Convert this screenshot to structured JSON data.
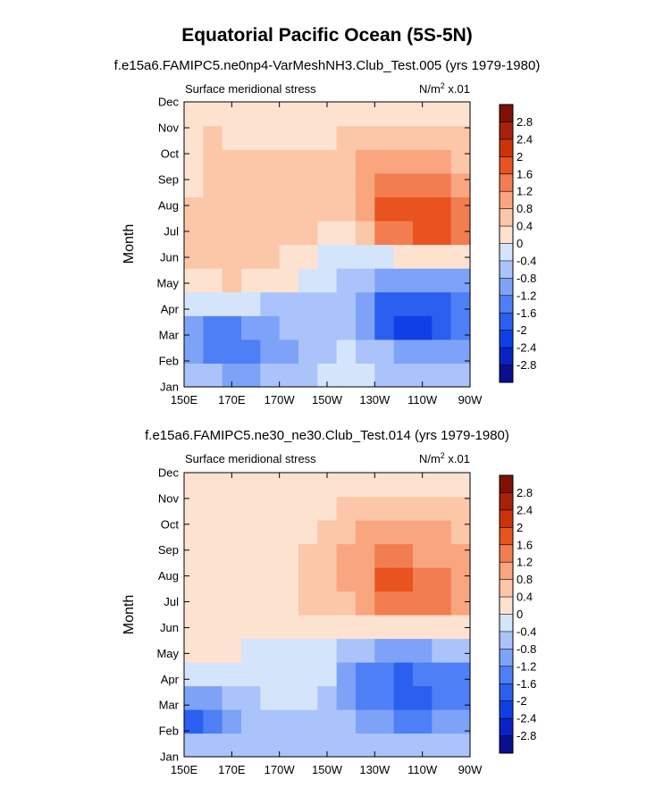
{
  "title": "Equatorial Pacific Ocean (5S-5N)",
  "colorbar": {
    "levels": [
      -2.8,
      -2.4,
      -2,
      -1.6,
      -1.2,
      -0.8,
      -0.4,
      0,
      0.4,
      0.8,
      1.2,
      1.6,
      2,
      2.4,
      2.8
    ],
    "level_labels": [
      "-2.8",
      "-2.4",
      "-2",
      "-1.6",
      "-1.2",
      "-0.8",
      "-0.4",
      "0",
      "0.4",
      "0.8",
      "1.2",
      "1.6",
      "2",
      "2.4",
      "2.8"
    ],
    "colors": [
      "#0a0f8c",
      "#0a22c4",
      "#0f3fe6",
      "#2a5ff0",
      "#4f7ff6",
      "#7da2f8",
      "#aac3fa",
      "#d4e4fb",
      "#fde2d0",
      "#fcc6a8",
      "#f9a57f",
      "#f27d50",
      "#e8531f",
      "#cc3408",
      "#a8210a",
      "#7c1205"
    ]
  },
  "chart_data": [
    {
      "type": "heatmap",
      "subtitle": "f.e15a6.FAMIPC5.ne0np4-VarMeshNH3.Club_Test.005 (yrs 1979-1980)",
      "left_label": "Surface meridional stress",
      "units_main": "N/m",
      "units_sup": "2",
      "units_rest": " x.01",
      "ylabel": "Month",
      "xlabel": "",
      "x_ticks": [
        "150E",
        "170E",
        "170W",
        "150W",
        "130W",
        "110W",
        "90W"
      ],
      "y_ticks": [
        "Jan",
        "Feb",
        "Mar",
        "Apr",
        "May",
        "Jun",
        "Jul",
        "Aug",
        "Sep",
        "Oct",
        "Nov",
        "Dec"
      ],
      "z": [
        [
          -0.6,
          -0.8,
          -0.9,
          -0.9,
          -0.8,
          -0.7,
          -0.5,
          -0.4,
          -0.3,
          -0.4,
          -0.6,
          -0.6,
          -0.6,
          -0.6,
          -0.7
        ],
        [
          -1.0,
          -1.4,
          -1.4,
          -1.3,
          -1.1,
          -0.9,
          -0.7,
          -0.5,
          -0.4,
          -0.5,
          -0.8,
          -0.9,
          -0.9,
          -0.9,
          -1.0
        ],
        [
          -0.9,
          -1.3,
          -1.4,
          -1.2,
          -1.0,
          -0.8,
          -0.8,
          -0.7,
          -0.8,
          -1.2,
          -1.7,
          -2.2,
          -2.4,
          -2.0,
          -1.6
        ],
        [
          -0.3,
          -0.4,
          -0.4,
          -0.4,
          -0.5,
          -0.6,
          -0.6,
          -0.5,
          -0.6,
          -1.1,
          -1.7,
          -2.0,
          -2.0,
          -1.7,
          -1.4
        ],
        [
          0.2,
          0.3,
          0.4,
          0.3,
          0.2,
          0.0,
          -0.2,
          -0.3,
          -0.5,
          -0.8,
          -1.0,
          -1.1,
          -1.1,
          -1.0,
          -0.9
        ],
        [
          0.4,
          0.6,
          0.5,
          0.5,
          0.4,
          0.3,
          0.2,
          -0.1,
          -0.2,
          -0.2,
          -0.1,
          0.1,
          0.2,
          0.3,
          0.3
        ],
        [
          0.4,
          0.5,
          0.4,
          0.4,
          0.4,
          0.5,
          0.4,
          0.3,
          0.2,
          0.6,
          1.2,
          1.5,
          1.7,
          1.6,
          1.4
        ],
        [
          0.4,
          0.5,
          0.4,
          0.4,
          0.4,
          0.5,
          0.4,
          0.4,
          0.5,
          1.0,
          1.6,
          1.8,
          1.8,
          1.7,
          1.5
        ],
        [
          0.3,
          0.5,
          0.4,
          0.4,
          0.4,
          0.4,
          0.4,
          0.5,
          0.6,
          1.0,
          1.3,
          1.4,
          1.4,
          1.3,
          1.1
        ],
        [
          0.3,
          0.5,
          0.4,
          0.4,
          0.4,
          0.4,
          0.4,
          0.5,
          0.6,
          0.8,
          0.9,
          0.9,
          0.9,
          0.8,
          0.7
        ],
        [
          0.3,
          0.4,
          0.3,
          0.3,
          0.3,
          0.3,
          0.3,
          0.3,
          0.4,
          0.5,
          0.5,
          0.5,
          0.5,
          0.5,
          0.4
        ],
        [
          0.1,
          0.2,
          0.2,
          0.2,
          0.2,
          0.2,
          0.2,
          0.2,
          0.2,
          0.1,
          0.1,
          0.0,
          0.0,
          0.0,
          0.0
        ]
      ]
    },
    {
      "type": "heatmap",
      "subtitle": "f.e15a6.FAMIPC5.ne30_ne30.Club_Test.014 (yrs 1979-1980)",
      "left_label": "Surface meridional stress",
      "units_main": "N/m",
      "units_sup": "2",
      "units_rest": " x.01",
      "ylabel": "Month",
      "xlabel": "",
      "x_ticks": [
        "150E",
        "170E",
        "170W",
        "150W",
        "130W",
        "110W",
        "90W"
      ],
      "y_ticks": [
        "Jan",
        "Feb",
        "Mar",
        "Apr",
        "May",
        "Jun",
        "Jul",
        "Aug",
        "Sep",
        "Oct",
        "Nov",
        "Dec"
      ],
      "z": [
        [
          -0.7,
          -0.7,
          -0.7,
          -0.7,
          -0.6,
          -0.6,
          -0.5,
          -0.5,
          -0.5,
          -0.6,
          -0.7,
          -0.8,
          -0.8,
          -0.8,
          -0.8
        ],
        [
          -1.9,
          -1.3,
          -0.9,
          -0.7,
          -0.6,
          -0.5,
          -0.5,
          -0.5,
          -0.7,
          -1.0,
          -1.2,
          -1.3,
          -1.3,
          -1.2,
          -1.1
        ],
        [
          -1.1,
          -0.9,
          -0.7,
          -0.5,
          -0.4,
          -0.3,
          -0.4,
          -0.5,
          -0.9,
          -1.4,
          -1.6,
          -1.7,
          -1.7,
          -1.6,
          -1.4
        ],
        [
          -0.4,
          -0.4,
          -0.3,
          -0.3,
          -0.3,
          -0.3,
          -0.3,
          -0.4,
          -0.9,
          -1.4,
          -1.6,
          -1.7,
          -1.6,
          -1.5,
          -1.3
        ],
        [
          0.1,
          0.0,
          0.0,
          -0.1,
          -0.1,
          -0.2,
          -0.3,
          -0.4,
          -0.6,
          -0.8,
          -0.9,
          -1.0,
          -0.9,
          -0.8,
          -0.7
        ],
        [
          0.3,
          0.3,
          0.3,
          0.3,
          0.3,
          0.2,
          0.1,
          0.0,
          0.0,
          0.1,
          0.2,
          0.2,
          0.2,
          0.2,
          0.2
        ],
        [
          0.3,
          0.3,
          0.3,
          0.3,
          0.3,
          0.3,
          0.4,
          0.5,
          0.7,
          1.0,
          1.2,
          1.3,
          1.3,
          1.2,
          1.0
        ],
        [
          0.3,
          0.3,
          0.3,
          0.3,
          0.3,
          0.3,
          0.4,
          0.5,
          0.8,
          1.1,
          1.6,
          1.7,
          1.4,
          1.2,
          1.0
        ],
        [
          0.3,
          0.3,
          0.3,
          0.3,
          0.3,
          0.3,
          0.4,
          0.5,
          0.8,
          1.1,
          1.3,
          1.3,
          1.1,
          1.0,
          0.9
        ],
        [
          0.3,
          0.3,
          0.3,
          0.3,
          0.3,
          0.3,
          0.3,
          0.4,
          0.6,
          0.8,
          0.9,
          0.9,
          0.8,
          0.8,
          0.7
        ],
        [
          0.3,
          0.3,
          0.3,
          0.3,
          0.3,
          0.3,
          0.3,
          0.3,
          0.4,
          0.5,
          0.5,
          0.5,
          0.5,
          0.5,
          0.4
        ],
        [
          0.0,
          0.1,
          0.2,
          0.2,
          0.2,
          0.1,
          0.1,
          0.1,
          0.0,
          0.0,
          0.0,
          0.0,
          0.0,
          0.0,
          0.0
        ]
      ]
    }
  ]
}
